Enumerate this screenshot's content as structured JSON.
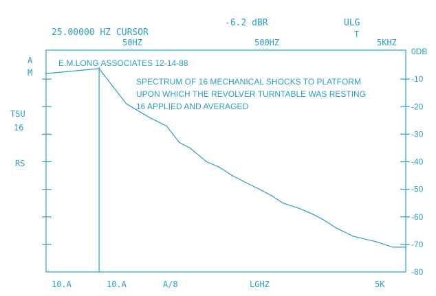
{
  "header": {
    "cursor_readout": "25.00000 HZ CURSOR",
    "level_readout": "-6.2 dBR",
    "mode_label": "ULG",
    "mode_sub": "T"
  },
  "left_labels": {
    "a": "A",
    "m": "M",
    "tsu": "TSU",
    "avg_count": "16",
    "rs": "RS"
  },
  "footer": {
    "left": "10.A",
    "left2": "10.A",
    "mid": "A/8",
    "scale": "LGHZ",
    "right": "5K"
  },
  "chart_data": {
    "type": "line",
    "title": "E.M.LONG ASSOCIATES   12-14-88",
    "annotation": [
      "SPECTRUM OF 16 MECHANICAL SHOCKS TO PLATFORM",
      "UPON WHICH THE REVOLVER TURNTABLE WAS RESTING",
      "16 APPLIED AND AVERAGED"
    ],
    "x_scale": "log",
    "x_range_hz": [
      10,
      5000
    ],
    "top_ticks": [
      "50HZ",
      "500HZ",
      "5KHZ"
    ],
    "y_range_db": [
      -80,
      0
    ],
    "y_ticks": [
      "0DB",
      "-10",
      "-20",
      "-30",
      "-40",
      "-50",
      "-60",
      "-70",
      "-80"
    ],
    "cursor_hz": 25,
    "series": [
      {
        "x": [
          10,
          25,
          40,
          60,
          80,
          100,
          120,
          160,
          200,
          250,
          300,
          400,
          500,
          600,
          800,
          1000,
          1200,
          1500,
          2000,
          3000,
          4000,
          5000
        ],
        "y": [
          -8,
          -6.2,
          -19,
          -24,
          -27,
          -33,
          -35,
          -40,
          -42,
          -45,
          -47,
          -50,
          -52.5,
          -55,
          -57,
          -59,
          -61,
          -64,
          -67,
          -69,
          -71,
          -71
        ]
      }
    ]
  }
}
